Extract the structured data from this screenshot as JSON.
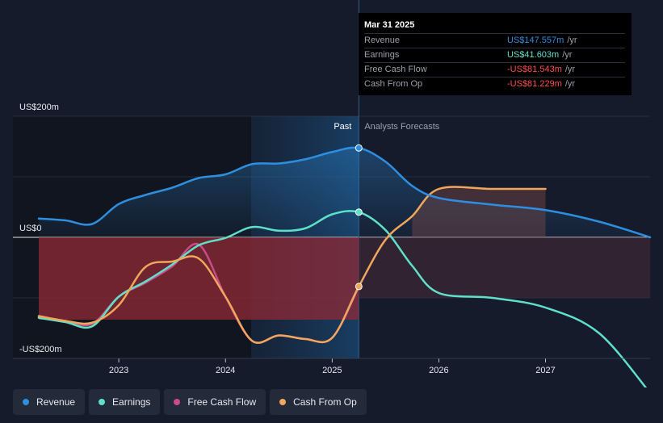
{
  "chart_data": {
    "type": "line",
    "y_labels": {
      "top": "US$200m",
      "zero": "US$0",
      "bottom": "-US$200m"
    },
    "ylim": [
      -200,
      200
    ],
    "x_ticks": [
      "2023",
      "2024",
      "2025",
      "2026",
      "2027"
    ],
    "xlim": [
      2022.25,
      2027.98
    ],
    "past_label": "Past",
    "forecast_label": "Analysts Forecasts",
    "divider_x": 2025.25,
    "series": [
      {
        "name": "Revenue",
        "color": "#2e8fe0",
        "points": [
          [
            2022.25,
            31
          ],
          [
            2022.5,
            28
          ],
          [
            2022.75,
            22
          ],
          [
            2023.0,
            55
          ],
          [
            2023.25,
            70
          ],
          [
            2023.5,
            82
          ],
          [
            2023.75,
            98
          ],
          [
            2024.0,
            104
          ],
          [
            2024.25,
            121
          ],
          [
            2024.5,
            122
          ],
          [
            2024.75,
            129
          ],
          [
            2025.0,
            141
          ],
          [
            2025.25,
            147.6
          ],
          [
            2025.5,
            125
          ],
          [
            2025.75,
            85
          ],
          [
            2026.0,
            65
          ],
          [
            2026.5,
            54
          ],
          [
            2027.0,
            45
          ],
          [
            2027.5,
            26
          ],
          [
            2027.98,
            0
          ]
        ]
      },
      {
        "name": "Earnings",
        "color": "#5fe0c9",
        "points": [
          [
            2022.25,
            -133
          ],
          [
            2022.5,
            -140
          ],
          [
            2022.75,
            -147
          ],
          [
            2023.0,
            -98
          ],
          [
            2023.25,
            -73
          ],
          [
            2023.5,
            -45
          ],
          [
            2023.75,
            -13
          ],
          [
            2024.0,
            -1
          ],
          [
            2024.25,
            17
          ],
          [
            2024.5,
            11
          ],
          [
            2024.75,
            15
          ],
          [
            2025.0,
            38
          ],
          [
            2025.25,
            41.6
          ],
          [
            2025.5,
            12
          ],
          [
            2025.75,
            -47
          ],
          [
            2026.0,
            -92
          ],
          [
            2026.5,
            -100
          ],
          [
            2027.0,
            -116
          ],
          [
            2027.5,
            -158
          ],
          [
            2027.98,
            -257
          ]
        ]
      },
      {
        "name": "Free Cash Flow",
        "color": "#c94b8a",
        "points": [
          [
            2022.25,
            -131
          ],
          [
            2022.5,
            -138
          ],
          [
            2022.75,
            -143
          ],
          [
            2023.0,
            -98
          ],
          [
            2023.25,
            -75
          ],
          [
            2023.5,
            -48
          ],
          [
            2023.75,
            -12
          ],
          [
            2024.0,
            -98
          ],
          [
            2024.25,
            -171
          ],
          [
            2024.5,
            -162
          ],
          [
            2024.75,
            -168
          ],
          [
            2025.0,
            -166
          ],
          [
            2025.25,
            -81.5
          ]
        ]
      },
      {
        "name": "Cash From Op",
        "color": "#f0a75c",
        "points": [
          [
            2022.25,
            -130
          ],
          [
            2022.5,
            -138
          ],
          [
            2022.75,
            -141
          ],
          [
            2023.0,
            -112
          ],
          [
            2023.25,
            -49
          ],
          [
            2023.5,
            -40
          ],
          [
            2023.75,
            -35
          ],
          [
            2024.0,
            -98
          ],
          [
            2024.25,
            -171
          ],
          [
            2024.5,
            -162
          ],
          [
            2024.75,
            -168
          ],
          [
            2025.0,
            -166
          ],
          [
            2025.25,
            -81.2
          ],
          [
            2025.5,
            -4
          ],
          [
            2025.75,
            35
          ],
          [
            2026.0,
            80
          ],
          [
            2026.5,
            80
          ],
          [
            2027.0,
            80
          ]
        ]
      }
    ]
  },
  "tooltip": {
    "date": "Mar 31 2025",
    "rows": [
      {
        "label": "Revenue",
        "value": "US$147.557m",
        "unit": "/yr",
        "color": "#2e8fe0"
      },
      {
        "label": "Earnings",
        "value": "US$41.603m",
        "unit": "/yr",
        "color": "#5fe0c9"
      },
      {
        "label": "Free Cash Flow",
        "value": "-US$81.543m",
        "unit": "/yr",
        "color": "#ff4d4d"
      },
      {
        "label": "Cash From Op",
        "value": "-US$81.229m",
        "unit": "/yr",
        "color": "#ff4d4d"
      }
    ]
  },
  "legend": [
    {
      "label": "Revenue",
      "color": "#2e8fe0"
    },
    {
      "label": "Earnings",
      "color": "#5fe0c9"
    },
    {
      "label": "Free Cash Flow",
      "color": "#c94b8a"
    },
    {
      "label": "Cash From Op",
      "color": "#f0a75c"
    }
  ]
}
